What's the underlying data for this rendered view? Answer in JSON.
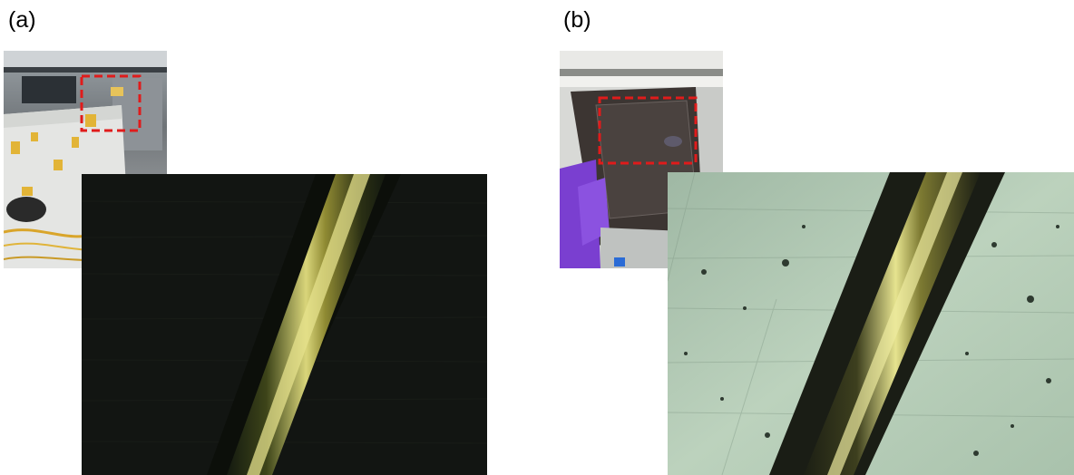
{
  "panels": [
    {
      "label": "(a)",
      "photo_icon": "lab-fiber-photo",
      "micro_icon": "fiber-micrograph-dark"
    },
    {
      "label": "(b)",
      "photo_icon": "gloved-sample-photo",
      "micro_icon": "fiber-micrograph-bright"
    }
  ],
  "colors": {
    "highlight_box": "#e01b1b",
    "dark_background": "#101410",
    "fiber": "#c9c25a",
    "bright_background": "#b9cfb8",
    "glove": "#7a3fd0"
  }
}
